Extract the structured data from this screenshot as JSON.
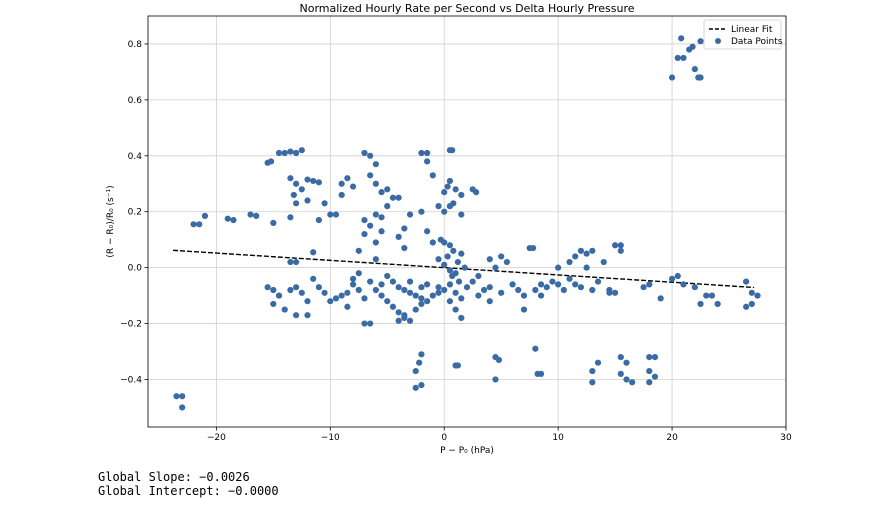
{
  "chart_data": {
    "type": "scatter",
    "title": "Normalized Hourly Rate per Second vs Delta Hourly Pressure",
    "xlabel": "P − P₀ (hPa)",
    "ylabel": "(R − R₀)/R₀ (s⁻¹)",
    "xlim": [
      -26,
      30
    ],
    "ylim": [
      -0.57,
      0.9
    ],
    "xticks": [
      -20,
      -10,
      0,
      10,
      20,
      30
    ],
    "xtick_labels": [
      "−20",
      "−10",
      "0",
      "10",
      "20",
      "30"
    ],
    "yticks": [
      -0.4,
      -0.2,
      0.0,
      0.2,
      0.4,
      0.6,
      0.8
    ],
    "ytick_labels": [
      "−0.4",
      "−0.2",
      "0.0",
      "0.2",
      "0.4",
      "0.6",
      "0.8"
    ],
    "grid": true,
    "legend_position": "top-right",
    "colors": {
      "points": "#3b6ba5",
      "fit": "#000000"
    },
    "series": [
      {
        "name": "Linear Fit",
        "kind": "line",
        "x": [
          -23.8,
          27.2
        ],
        "y": [
          0.062,
          -0.071
        ]
      },
      {
        "name": "Data Points",
        "kind": "scatter",
        "points": [
          [
            -23.5,
            -0.46
          ],
          [
            -23.0,
            -0.46
          ],
          [
            -23.0,
            -0.5
          ],
          [
            -22.0,
            0.155
          ],
          [
            -21.5,
            0.155
          ],
          [
            -21.0,
            0.185
          ],
          [
            -19.0,
            0.175
          ],
          [
            -18.5,
            0.17
          ],
          [
            -17.0,
            0.19
          ],
          [
            -16.5,
            0.185
          ],
          [
            -15.5,
            0.375
          ],
          [
            -15.2,
            0.38
          ],
          [
            -14.5,
            0.41
          ],
          [
            -14.0,
            0.41
          ],
          [
            -13.5,
            0.415
          ],
          [
            -13.0,
            0.41
          ],
          [
            -12.5,
            0.42
          ],
          [
            -13.5,
            0.32
          ],
          [
            -13.0,
            0.3
          ],
          [
            -12.5,
            0.28
          ],
          [
            -13.2,
            0.26
          ],
          [
            -12.0,
            0.315
          ],
          [
            -11.5,
            0.31
          ],
          [
            -11.0,
            0.305
          ],
          [
            -13.0,
            0.23
          ],
          [
            -12.0,
            0.24
          ],
          [
            -10.5,
            0.23
          ],
          [
            -10.0,
            0.19
          ],
          [
            -9.5,
            0.19
          ],
          [
            -9.0,
            0.3
          ],
          [
            -8.5,
            0.32
          ],
          [
            -8.0,
            0.29
          ],
          [
            -9.0,
            0.26
          ],
          [
            -15.0,
            0.16
          ],
          [
            -13.5,
            0.18
          ],
          [
            -11.0,
            0.17
          ],
          [
            -15.5,
            -0.07
          ],
          [
            -15.0,
            -0.08
          ],
          [
            -14.5,
            -0.1
          ],
          [
            -15.0,
            -0.13
          ],
          [
            -14.0,
            -0.15
          ],
          [
            -13.5,
            -0.08
          ],
          [
            -13.0,
            -0.07
          ],
          [
            -12.5,
            -0.09
          ],
          [
            -12.0,
            -0.12
          ],
          [
            -13.0,
            -0.17
          ],
          [
            -12.0,
            -0.17
          ],
          [
            -11.5,
            -0.04
          ],
          [
            -11.0,
            -0.07
          ],
          [
            -10.5,
            -0.09
          ],
          [
            -10.0,
            -0.12
          ],
          [
            -9.5,
            -0.11
          ],
          [
            -9.0,
            -0.1
          ],
          [
            -8.5,
            -0.14
          ],
          [
            -8.0,
            -0.06
          ],
          [
            -7.5,
            -0.08
          ],
          [
            -7.0,
            -0.2
          ],
          [
            -6.5,
            -0.2
          ],
          [
            -13.5,
            0.02
          ],
          [
            -13.0,
            0.02
          ],
          [
            -11.5,
            0.055
          ],
          [
            -7.0,
            0.41
          ],
          [
            -6.5,
            0.4
          ],
          [
            -6.0,
            0.37
          ],
          [
            -6.5,
            0.33
          ],
          [
            -6.0,
            0.3
          ],
          [
            -5.5,
            0.27
          ],
          [
            -5.0,
            0.28
          ],
          [
            -4.5,
            0.25
          ],
          [
            -5.0,
            0.22
          ],
          [
            -4.0,
            0.25
          ],
          [
            -6.0,
            0.19
          ],
          [
            -5.5,
            0.18
          ],
          [
            -7.0,
            0.17
          ],
          [
            -6.5,
            0.15
          ],
          [
            -5.5,
            0.13
          ],
          [
            -7.0,
            0.12
          ],
          [
            -6.0,
            0.09
          ],
          [
            -7.5,
            0.06
          ],
          [
            -6.0,
            0.03
          ],
          [
            -5.0,
            -0.03
          ],
          [
            -4.5,
            -0.05
          ],
          [
            -4.0,
            -0.07
          ],
          [
            -3.5,
            -0.08
          ],
          [
            -3.0,
            -0.09
          ],
          [
            -2.5,
            -0.1
          ],
          [
            -2.0,
            -0.11
          ],
          [
            -1.5,
            -0.12
          ],
          [
            -1.0,
            -0.1
          ],
          [
            -0.5,
            -0.09
          ],
          [
            -5.5,
            -0.1
          ],
          [
            -5.0,
            -0.12
          ],
          [
            -4.5,
            -0.14
          ],
          [
            -4.0,
            -0.16
          ],
          [
            -3.5,
            -0.18
          ],
          [
            -3.0,
            -0.19
          ],
          [
            -4.0,
            -0.19
          ],
          [
            -3.5,
            -0.17
          ],
          [
            -2.5,
            -0.15
          ],
          [
            -2.0,
            -0.13
          ],
          [
            -8.0,
            -0.04
          ],
          [
            -7.5,
            -0.02
          ],
          [
            -6.5,
            -0.05
          ],
          [
            -8.5,
            -0.09
          ],
          [
            -7.0,
            -0.11
          ],
          [
            -6.0,
            -0.08
          ],
          [
            -5.5,
            -0.06
          ],
          [
            -3.0,
            -0.05
          ],
          [
            -2.0,
            -0.07
          ],
          [
            -1.5,
            -0.06
          ],
          [
            -3.5,
            0.14
          ],
          [
            -3.0,
            0.19
          ],
          [
            -4.0,
            0.11
          ],
          [
            -3.5,
            0.07
          ],
          [
            -2.0,
            0.41
          ],
          [
            -1.5,
            0.38
          ],
          [
            -1.5,
            0.41
          ],
          [
            -1.0,
            0.33
          ],
          [
            -2.0,
            0.2
          ],
          [
            -1.5,
            0.13
          ],
          [
            -1.0,
            0.09
          ],
          [
            -0.5,
            0.22
          ],
          [
            0.0,
            0.27
          ],
          [
            0.3,
            0.29
          ],
          [
            0.5,
            0.31
          ],
          [
            0.7,
            0.42
          ],
          [
            0.5,
            0.42
          ],
          [
            1.0,
            0.28
          ],
          [
            1.5,
            0.26
          ],
          [
            0.8,
            0.23
          ],
          [
            0.5,
            0.22
          ],
          [
            0.0,
            0.2
          ],
          [
            1.5,
            0.19
          ],
          [
            2.5,
            0.28
          ],
          [
            2.8,
            0.27
          ],
          [
            -0.3,
            0.1
          ],
          [
            0.0,
            0.09
          ],
          [
            0.5,
            0.08
          ],
          [
            0.8,
            0.06
          ],
          [
            0.3,
            0.04
          ],
          [
            0.0,
            0.01
          ],
          [
            -0.5,
            0.03
          ],
          [
            0.5,
            -0.01
          ],
          [
            1.0,
            -0.02
          ],
          [
            1.2,
            0.02
          ],
          [
            0.7,
            -0.03
          ],
          [
            1.5,
            0.05
          ],
          [
            1.8,
            0.0
          ],
          [
            1.3,
            -0.05
          ],
          [
            0.5,
            -0.06
          ],
          [
            0.0,
            -0.08
          ],
          [
            -0.5,
            -0.07
          ],
          [
            1.0,
            -0.09
          ],
          [
            1.5,
            -0.11
          ],
          [
            2.0,
            -0.07
          ],
          [
            2.5,
            -0.05
          ],
          [
            0.5,
            -0.12
          ],
          [
            1.0,
            -0.15
          ],
          [
            1.5,
            -0.18
          ],
          [
            1.0,
            -0.35
          ],
          [
            1.2,
            -0.35
          ],
          [
            -2.0,
            -0.31
          ],
          [
            -2.2,
            -0.34
          ],
          [
            -2.5,
            -0.37
          ],
          [
            -2.0,
            -0.42
          ],
          [
            -2.5,
            -0.43
          ],
          [
            3.0,
            -0.1
          ],
          [
            3.5,
            -0.08
          ],
          [
            4.0,
            -0.07
          ],
          [
            3.0,
            -0.03
          ],
          [
            4.0,
            0.03
          ],
          [
            4.5,
            0.0
          ],
          [
            5.0,
            0.04
          ],
          [
            5.5,
            0.02
          ],
          [
            4.0,
            -0.12
          ],
          [
            5.0,
            -0.09
          ],
          [
            4.5,
            -0.32
          ],
          [
            4.8,
            -0.33
          ],
          [
            4.5,
            -0.4
          ],
          [
            6.0,
            -0.06
          ],
          [
            6.5,
            -0.08
          ],
          [
            7.0,
            -0.1
          ],
          [
            7.5,
            0.07
          ],
          [
            7.8,
            0.07
          ],
          [
            7.0,
            -0.15
          ],
          [
            8.0,
            -0.08
          ],
          [
            8.5,
            -0.06
          ],
          [
            9.0,
            -0.07
          ],
          [
            8.5,
            -0.1
          ],
          [
            8.0,
            -0.29
          ],
          [
            8.5,
            -0.38
          ],
          [
            8.2,
            -0.38
          ],
          [
            9.5,
            -0.05
          ],
          [
            10.0,
            -0.06
          ],
          [
            10.5,
            -0.08
          ],
          [
            11.0,
            -0.04
          ],
          [
            11.5,
            -0.06
          ],
          [
            10.0,
            0.0
          ],
          [
            11.0,
            0.02
          ],
          [
            11.5,
            0.04
          ],
          [
            12.0,
            0.06
          ],
          [
            12.5,
            0.05
          ],
          [
            12.0,
            -0.07
          ],
          [
            13.0,
            -0.08
          ],
          [
            13.5,
            -0.05
          ],
          [
            12.5,
            0.0
          ],
          [
            13.0,
            0.06
          ],
          [
            13.0,
            -0.37
          ],
          [
            13.5,
            -0.34
          ],
          [
            13.0,
            -0.41
          ],
          [
            14.0,
            0.02
          ],
          [
            14.5,
            -0.09
          ],
          [
            15.0,
            -0.09
          ],
          [
            15.0,
            0.08
          ],
          [
            15.5,
            0.08
          ],
          [
            15.5,
            0.06
          ],
          [
            14.5,
            -0.08
          ],
          [
            15.5,
            -0.32
          ],
          [
            16.0,
            -0.34
          ],
          [
            15.5,
            -0.38
          ],
          [
            16.0,
            -0.4
          ],
          [
            16.5,
            -0.41
          ],
          [
            17.5,
            -0.07
          ],
          [
            18.0,
            -0.06
          ],
          [
            18.0,
            -0.32
          ],
          [
            18.5,
            -0.32
          ],
          [
            18.0,
            -0.37
          ],
          [
            18.5,
            -0.39
          ],
          [
            18.0,
            -0.41
          ],
          [
            19.0,
            -0.11
          ],
          [
            20.0,
            -0.04
          ],
          [
            20.5,
            -0.03
          ],
          [
            21.0,
            -0.06
          ],
          [
            22.0,
            -0.07
          ],
          [
            22.5,
            -0.13
          ],
          [
            23.0,
            -0.1
          ],
          [
            23.5,
            -0.1
          ],
          [
            24.0,
            -0.13
          ],
          [
            26.5,
            -0.05
          ],
          [
            26.5,
            -0.14
          ],
          [
            27.0,
            -0.13
          ],
          [
            27.5,
            -0.1
          ],
          [
            27.0,
            -0.09
          ],
          [
            20.0,
            0.68
          ],
          [
            20.5,
            0.75
          ],
          [
            20.8,
            0.82
          ],
          [
            21.0,
            0.75
          ],
          [
            21.5,
            0.78
          ],
          [
            21.8,
            0.79
          ],
          [
            22.0,
            0.71
          ],
          [
            22.3,
            0.68
          ],
          [
            22.5,
            0.68
          ],
          [
            22.5,
            0.81
          ]
        ]
      }
    ]
  },
  "stats": {
    "slope_text": "Global Slope: −0.0026",
    "intercept_text": "Global Intercept: −0.0000"
  }
}
